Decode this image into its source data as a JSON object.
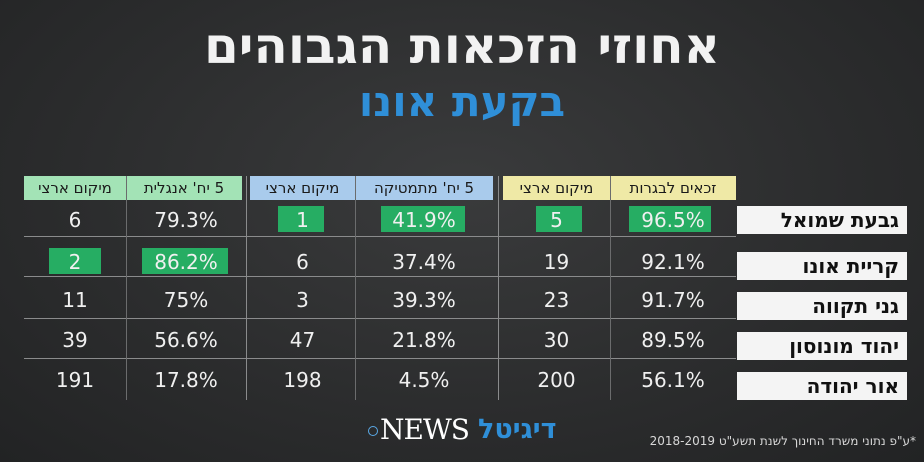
{
  "title": "אחוזי הזכאות הגבוהים",
  "subtitle": "בקעת אונו",
  "groups": [
    {
      "label": "זכאים לבגרות",
      "rank_label": "מיקום ארצי",
      "color": "#efe9a6"
    },
    {
      "label": "5 יח' מתמטיקה",
      "rank_label": "מיקום ארצי",
      "color": "#a9cbec"
    },
    {
      "label": "5 יח' אנגלית",
      "rank_label": "מיקום ארצי",
      "color": "#a3e3b6"
    }
  ],
  "highlight_color": "#26ad63",
  "rows": [
    {
      "city": "גבעת שמואל",
      "bagrut": "96.5%",
      "bagrut_rank": "5",
      "math": "41.9%",
      "math_rank": "1",
      "english": "79.3%",
      "english_rank": "6"
    },
    {
      "city": "קריית אונו",
      "bagrut": "92.1%",
      "bagrut_rank": "19",
      "math": "37.4%",
      "math_rank": "6",
      "english": "86.2%",
      "english_rank": "2"
    },
    {
      "city": "גני תקווה",
      "bagrut": "91.7%",
      "bagrut_rank": "23",
      "math": "39.3%",
      "math_rank": "3",
      "english": "75%",
      "english_rank": "11"
    },
    {
      "city": "יהוד מונוסון",
      "bagrut": "89.5%",
      "bagrut_rank": "30",
      "math": "21.8%",
      "math_rank": "47",
      "english": "56.6%",
      "english_rank": "39"
    },
    {
      "city": "אור יהודה",
      "bagrut": "56.1%",
      "bagrut_rank": "200",
      "math": "4.5%",
      "math_rank": "198",
      "english": "17.8%",
      "english_rank": "191"
    }
  ],
  "logo": {
    "hebrew": "דיגיטל",
    "latin": "NEWS"
  },
  "footnote": "*ע\"פ נתוני משרד החינוך לשנת תשע\"ט 2018-2019"
}
